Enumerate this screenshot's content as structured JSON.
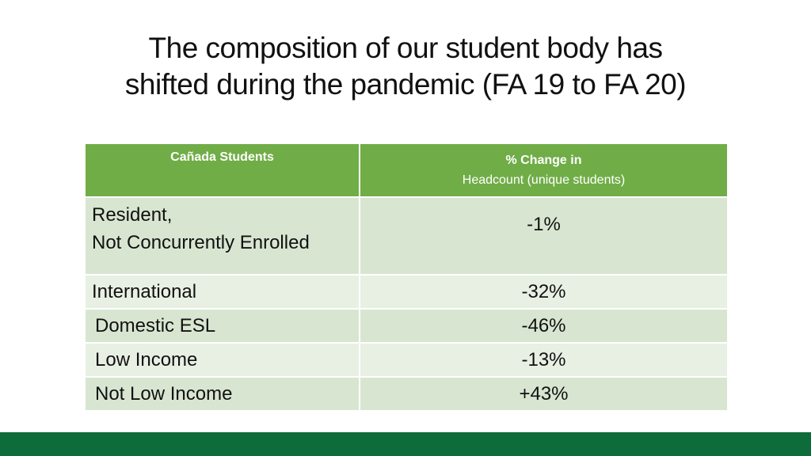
{
  "title": {
    "line1": "The composition of our student body has",
    "line2": "shifted during the pandemic (FA 19 to FA 20)"
  },
  "table": {
    "headers": {
      "col1": "Cañada Students",
      "col2_line1": "% Change in",
      "col2_line2": "Headcount (unique students)"
    },
    "rows": [
      {
        "label_line1": "Resident,",
        "label_line2": "Not Concurrently Enrolled",
        "value": "-1%"
      },
      {
        "label": "International",
        "value": "-32%"
      },
      {
        "label": "Domestic ESL",
        "value": "-46%"
      },
      {
        "label": "Low Income",
        "value": "-13%"
      },
      {
        "label": "Not Low Income",
        "value": "+43%"
      }
    ]
  },
  "colors": {
    "header_bg": "#70ad47",
    "row_dark": "#d8e6d1",
    "row_light": "#e8f0e4",
    "negative": "#e0201b",
    "footer": "#0e6b3a"
  }
}
